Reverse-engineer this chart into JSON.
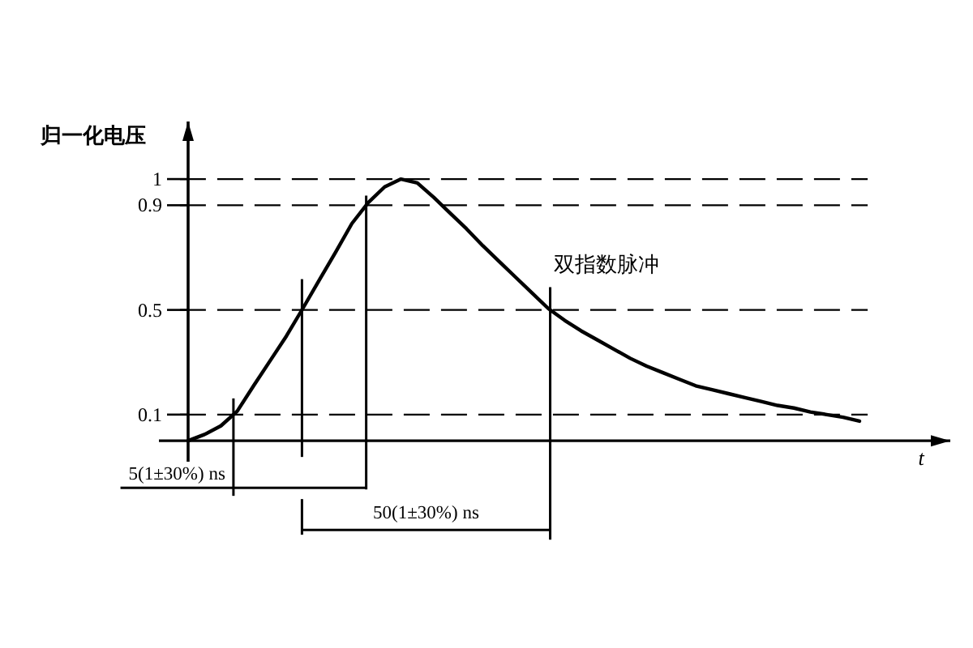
{
  "chart_data": {
    "type": "line",
    "ylabel": "归一化电压",
    "xlabel": "t",
    "categories": [
      null,
      null,
      null,
      null,
      null,
      null,
      null,
      null,
      null,
      null,
      null,
      null,
      null,
      null,
      null,
      null,
      null,
      null,
      null,
      null,
      null,
      null,
      null,
      null,
      null,
      null,
      null,
      null,
      null,
      null,
      null,
      null,
      null,
      null,
      null,
      null,
      null,
      null,
      null,
      null,
      null,
      null
    ],
    "series": [
      {
        "name": "双指数脉冲",
        "color": "#000000",
        "line_style": "solid",
        "values": [
          0,
          0.024,
          0.057,
          0.113,
          0.21,
          0.305,
          0.4,
          0.505,
          0.613,
          0.72,
          0.83,
          0.91,
          0.97,
          1,
          0.985,
          0.93,
          0.87,
          0.81,
          0.745,
          0.685,
          0.625,
          0.565,
          0.505,
          0.46,
          0.42,
          0.385,
          0.35,
          0.315,
          0.285,
          0.26,
          0.235,
          0.21,
          0.195,
          0.18,
          0.165,
          0.15,
          0.135,
          0.125,
          0.11,
          0.1,
          0.09,
          0.075
        ]
      }
    ],
    "ylim": [
      -0.08,
      1.22
    ],
    "yticks": [
      1,
      0.9,
      0.5,
      0.1
    ],
    "ref_lines": [
      {
        "axis": "y",
        "value": 1,
        "color": "#000000",
        "line_style": "dashed"
      },
      {
        "axis": "y",
        "value": 0.9,
        "color": "#000000",
        "line_style": "dashed"
      },
      {
        "axis": "y",
        "value": 0.5,
        "color": "#000000",
        "line_style": "dashed"
      },
      {
        "axis": "y",
        "value": 0.1,
        "color": "#000000",
        "line_style": "dashed"
      }
    ],
    "annotations": [
      "5(1±30%) ns",
      "50(1±30%) ns"
    ]
  }
}
